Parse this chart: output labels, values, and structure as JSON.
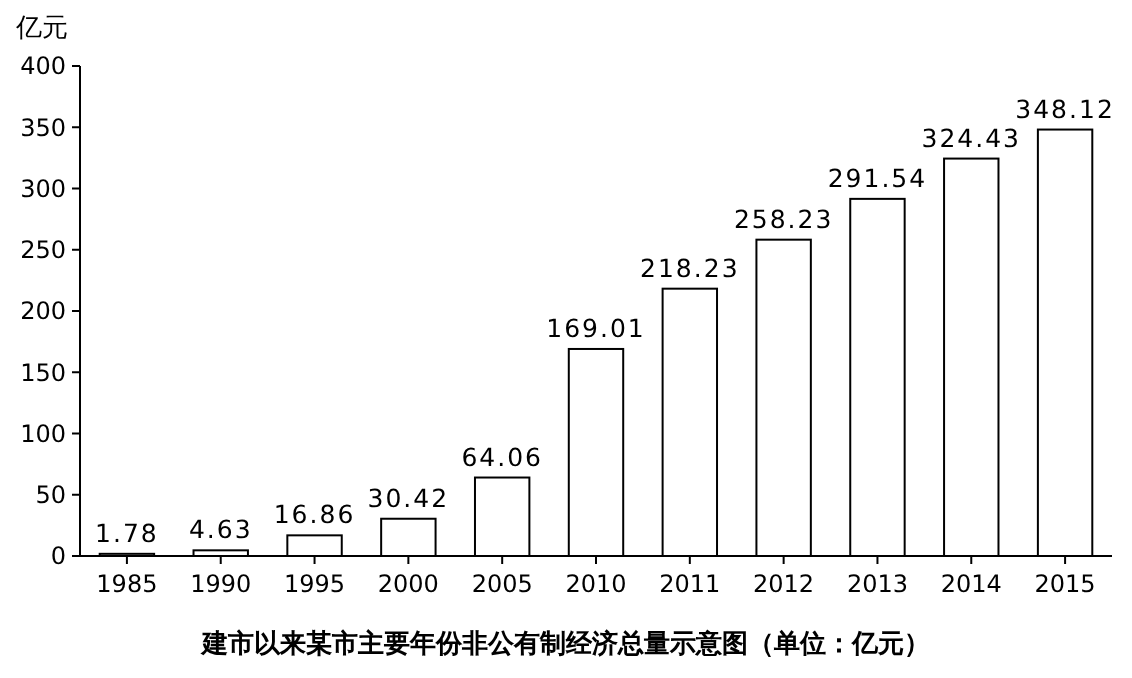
{
  "chart_data": {
    "type": "bar",
    "title": "建市以来某市主要年份非公有制经济总量示意图（单位：亿元）",
    "ylabel": "亿元",
    "categories": [
      "1985",
      "1990",
      "1995",
      "2000",
      "2005",
      "2010",
      "2011",
      "2012",
      "2013",
      "2014",
      "2015"
    ],
    "values": [
      1.78,
      4.63,
      16.86,
      30.42,
      64.06,
      169.01,
      218.23,
      258.23,
      291.54,
      324.43,
      348.12
    ],
    "color": "#ffffff",
    "ylim": [
      0,
      400
    ],
    "yticks": [
      0,
      50,
      100,
      150,
      200,
      250,
      300,
      350,
      400
    ],
    "grid": false,
    "data_labels": true
  }
}
